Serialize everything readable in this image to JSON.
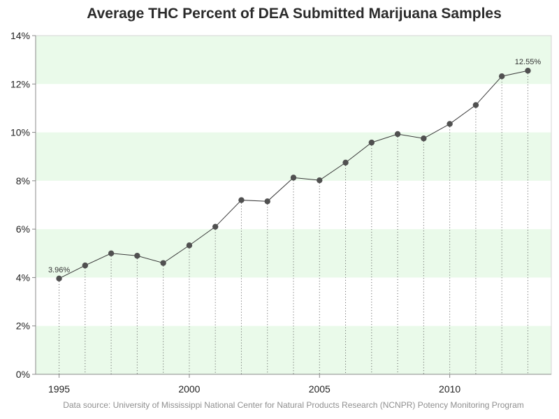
{
  "chart_data": {
    "type": "line",
    "title": "Average THC Percent of DEA Submitted Marijuana Samples",
    "xlabel": "",
    "ylabel": "",
    "footnote": "Data source: University of Mississippi National Center for Natural Products Research (NCNPR) Potency Monitoring Program",
    "x": [
      1995,
      1996,
      1997,
      1998,
      1999,
      2000,
      2001,
      2002,
      2003,
      2004,
      2005,
      2006,
      2007,
      2008,
      2009,
      2010,
      2011,
      2012,
      2013
    ],
    "series": [
      {
        "name": "",
        "values": [
          3.96,
          4.5,
          5.0,
          4.9,
          4.6,
          5.33,
          6.1,
          7.2,
          7.15,
          8.13,
          8.02,
          8.75,
          9.58,
          9.93,
          9.75,
          10.35,
          11.13,
          12.32,
          12.55
        ]
      }
    ],
    "xlim": [
      1994.1,
      2013.9
    ],
    "ylim": [
      0,
      14
    ],
    "x_tick_values": [
      1995,
      2000,
      2005,
      2010
    ],
    "x_tick_labels": [
      "1995",
      "2000",
      "2005",
      "2010"
    ],
    "y_tick_values": [
      0,
      2,
      4,
      6,
      8,
      10,
      12,
      14
    ],
    "y_tick_labels": [
      "0%",
      "2%",
      "4%",
      "6%",
      "8%",
      "10%",
      "12%",
      "14%"
    ],
    "annotations": [
      {
        "x": 1995,
        "text": "3.96%"
      },
      {
        "x": 2013,
        "text": "12.55%"
      }
    ],
    "grid": false,
    "alternating_bands": true,
    "drop_lines": true,
    "colors": {
      "band": "#eafaea",
      "line": "#3a3a3a",
      "marker": "#505050",
      "axis": "#888888",
      "drop_line": "#555555"
    }
  }
}
